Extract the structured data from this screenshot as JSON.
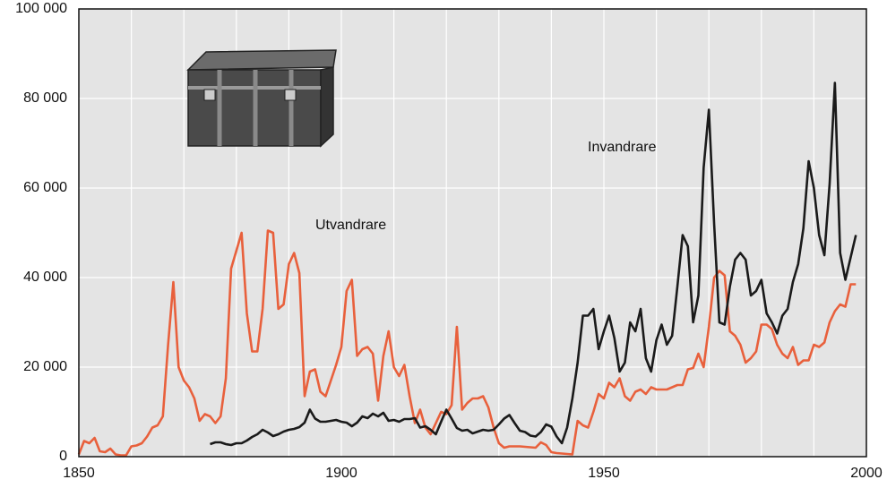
{
  "chart_data": {
    "type": "line",
    "x": [
      1850,
      1851,
      1852,
      1853,
      1854,
      1855,
      1856,
      1857,
      1858,
      1859,
      1860,
      1861,
      1862,
      1863,
      1864,
      1865,
      1866,
      1867,
      1868,
      1869,
      1870,
      1871,
      1872,
      1873,
      1874,
      1875,
      1876,
      1877,
      1878,
      1879,
      1880,
      1881,
      1882,
      1883,
      1884,
      1885,
      1886,
      1887,
      1888,
      1889,
      1890,
      1891,
      1892,
      1893,
      1894,
      1895,
      1896,
      1897,
      1898,
      1899,
      1900,
      1901,
      1902,
      1903,
      1904,
      1905,
      1906,
      1907,
      1908,
      1909,
      1910,
      1911,
      1912,
      1913,
      1914,
      1915,
      1916,
      1917,
      1918,
      1919,
      1920,
      1921,
      1922,
      1923,
      1924,
      1925,
      1926,
      1927,
      1928,
      1929,
      1930,
      1931,
      1932,
      1933,
      1934,
      1935,
      1936,
      1937,
      1938,
      1939,
      1940,
      1941,
      1942,
      1943,
      1944,
      1945,
      1946,
      1947,
      1948,
      1949,
      1950,
      1951,
      1952,
      1953,
      1954,
      1955,
      1956,
      1957,
      1958,
      1959,
      1960,
      1961,
      1962,
      1963,
      1964,
      1965,
      1966,
      1967,
      1968,
      1969,
      1970,
      1971,
      1972,
      1973,
      1974,
      1975,
      1976,
      1977,
      1978,
      1979,
      1980,
      1981,
      1982,
      1983,
      1984,
      1985,
      1986,
      1987,
      1988,
      1989,
      1990,
      1991,
      1992,
      1993,
      1994,
      1995,
      1996,
      1997,
      1998
    ],
    "series": [
      {
        "name": "Utvandrare",
        "color": "#e8603c",
        "values": [
          500,
          3500,
          3000,
          4200,
          1200,
          1000,
          1800,
          500,
          300,
          300,
          2300,
          2500,
          3000,
          4500,
          6500,
          7000,
          9000,
          25000,
          39000,
          20000,
          17000,
          15500,
          13000,
          8000,
          9500,
          9000,
          7500,
          9000,
          17500,
          42000,
          46000,
          50000,
          32000,
          23500,
          23500,
          33000,
          50500,
          50000,
          33000,
          34000,
          43000,
          45500,
          41000,
          13500,
          19000,
          19500,
          14500,
          13500,
          17000,
          20500,
          24500,
          37000,
          39500,
          22500,
          24000,
          24500,
          23000,
          12500,
          22500,
          28000,
          20000,
          18000,
          20500,
          13500,
          7500,
          10500,
          6500,
          5000,
          7500,
          10000,
          9500,
          11500,
          29000,
          10500,
          12000,
          13000,
          13000,
          13500,
          11000,
          6500,
          3000,
          2000,
          2300,
          2300,
          2300,
          2200,
          2100,
          2000,
          3200,
          2600,
          1000,
          800,
          700,
          600,
          500,
          8000,
          7000,
          6500,
          10000,
          14000,
          13000,
          16500,
          15500,
          17500,
          13500,
          12500,
          14500,
          15000,
          14000,
          15500,
          15000,
          15000,
          15000,
          15500,
          16000,
          16000,
          19500,
          19800,
          23000,
          20000,
          29000,
          40000,
          41500,
          40500,
          28000,
          27000,
          25000,
          21000,
          22000,
          23500,
          29500,
          29500,
          28500,
          25000,
          23000,
          22000,
          24500,
          20500,
          21500,
          21500,
          25000,
          24500,
          25500,
          30000,
          32500,
          34000,
          33500,
          38500,
          38500
        ]
      },
      {
        "name": "Invandrare",
        "color": "#1a1a1a",
        "values": [
          null,
          null,
          null,
          null,
          null,
          null,
          null,
          null,
          null,
          null,
          null,
          null,
          null,
          null,
          null,
          null,
          null,
          null,
          null,
          null,
          null,
          null,
          null,
          null,
          null,
          2800,
          3200,
          3200,
          2800,
          2600,
          3000,
          3000,
          3600,
          4400,
          5000,
          6000,
          5400,
          4600,
          5000,
          5600,
          6000,
          6200,
          6600,
          7600,
          10500,
          8500,
          7800,
          7800,
          8000,
          8200,
          7800,
          7600,
          6800,
          7600,
          9000,
          8600,
          9600,
          9000,
          9800,
          8000,
          8200,
          7800,
          8400,
          8400,
          8600,
          6500,
          6800,
          6000,
          5000,
          7800,
          10500,
          8500,
          6400,
          5800,
          6000,
          5200,
          5600,
          6000,
          5800,
          6000,
          7200,
          8500,
          9300,
          7500,
          5800,
          5500,
          4700,
          4500,
          5500,
          7200,
          6700,
          4500,
          3000,
          6500,
          13000,
          21000,
          31500,
          31500,
          33000,
          24000,
          28000,
          31500,
          26500,
          19000,
          21000,
          30000,
          28000,
          33000,
          22000,
          19000,
          26000,
          29500,
          25000,
          27000,
          38000,
          49500,
          47000,
          30000,
          36000,
          64500,
          77500,
          52000,
          30000,
          29500,
          38000,
          44000,
          45500,
          44000,
          36000,
          37000,
          39500,
          32000,
          30000,
          27500,
          31500,
          33000,
          39000,
          43000,
          51000,
          66000,
          60000,
          49500,
          45000,
          61000,
          83500,
          45500,
          39500,
          44500,
          49500
        ]
      }
    ],
    "xlim": [
      1850,
      2000
    ],
    "xticks": [
      1850,
      1900,
      1950,
      2000
    ],
    "xminor_ticks": [
      1860,
      1870,
      1880,
      1890,
      1910,
      1920,
      1930,
      1940,
      1960,
      1970,
      1980,
      1990
    ],
    "ylim": [
      0,
      100000
    ],
    "yticks": [
      0,
      {
        "value": 20000,
        "label": "20 000"
      },
      {
        "value": 40000,
        "label": "40 000"
      },
      {
        "value": 60000,
        "label": "60 000"
      },
      {
        "value": 80000,
        "label": "80 000"
      },
      {
        "value": 100000,
        "label": "100 000"
      }
    ],
    "grid": true
  }
}
